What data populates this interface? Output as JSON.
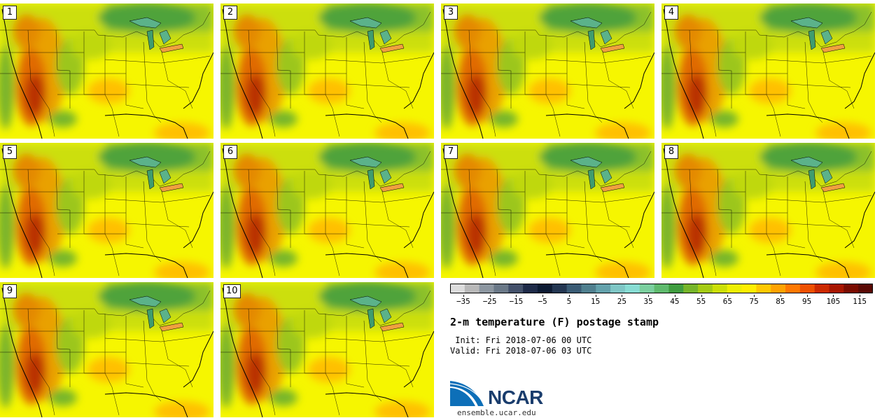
{
  "panels": [
    {
      "label": "1"
    },
    {
      "label": "2"
    },
    {
      "label": "3"
    },
    {
      "label": "4"
    },
    {
      "label": "5"
    },
    {
      "label": "6"
    },
    {
      "label": "7"
    },
    {
      "label": "8"
    },
    {
      "label": "9"
    },
    {
      "label": "10"
    }
  ],
  "colorbar": {
    "colors": [
      "#dcdcdc",
      "#b8b8b8",
      "#8c96a0",
      "#6a7887",
      "#43506a",
      "#1e2a48",
      "#0c1a33",
      "#233651",
      "#3a5b74",
      "#4f7f8e",
      "#63a1ab",
      "#7ec6c5",
      "#87dcd3",
      "#7bcf9e",
      "#5fba6d",
      "#3f9c3f",
      "#76b52a",
      "#a5cb14",
      "#ccdf07",
      "#eeef02",
      "#ffee00",
      "#ffc800",
      "#ffa200",
      "#ff7800",
      "#ee5000",
      "#cc2a00",
      "#a81600",
      "#7a0c00",
      "#5a0a05"
    ],
    "tick_labels": [
      "−35",
      "−25",
      "−15",
      "−5",
      "5",
      "15",
      "25",
      "35",
      "45",
      "55",
      "65",
      "75",
      "85",
      "95",
      "105",
      "115"
    ],
    "tick_values": [
      -35,
      -25,
      -15,
      -5,
      5,
      15,
      25,
      35,
      45,
      55,
      65,
      75,
      85,
      95,
      105,
      115
    ],
    "range": [
      -40,
      120
    ]
  },
  "title": "2-m temperature (F) postage stamp",
  "init": " Init: Fri 2018-07-06 00 UTC",
  "valid": "Valid: Fri 2018-07-06 03 UTC",
  "logo": {
    "text": "NCAR"
  },
  "site": "ensemble.ucar.edu",
  "colors": {
    "accent": "#1a3d6d",
    "logo_blue": "#0d6fb8"
  }
}
